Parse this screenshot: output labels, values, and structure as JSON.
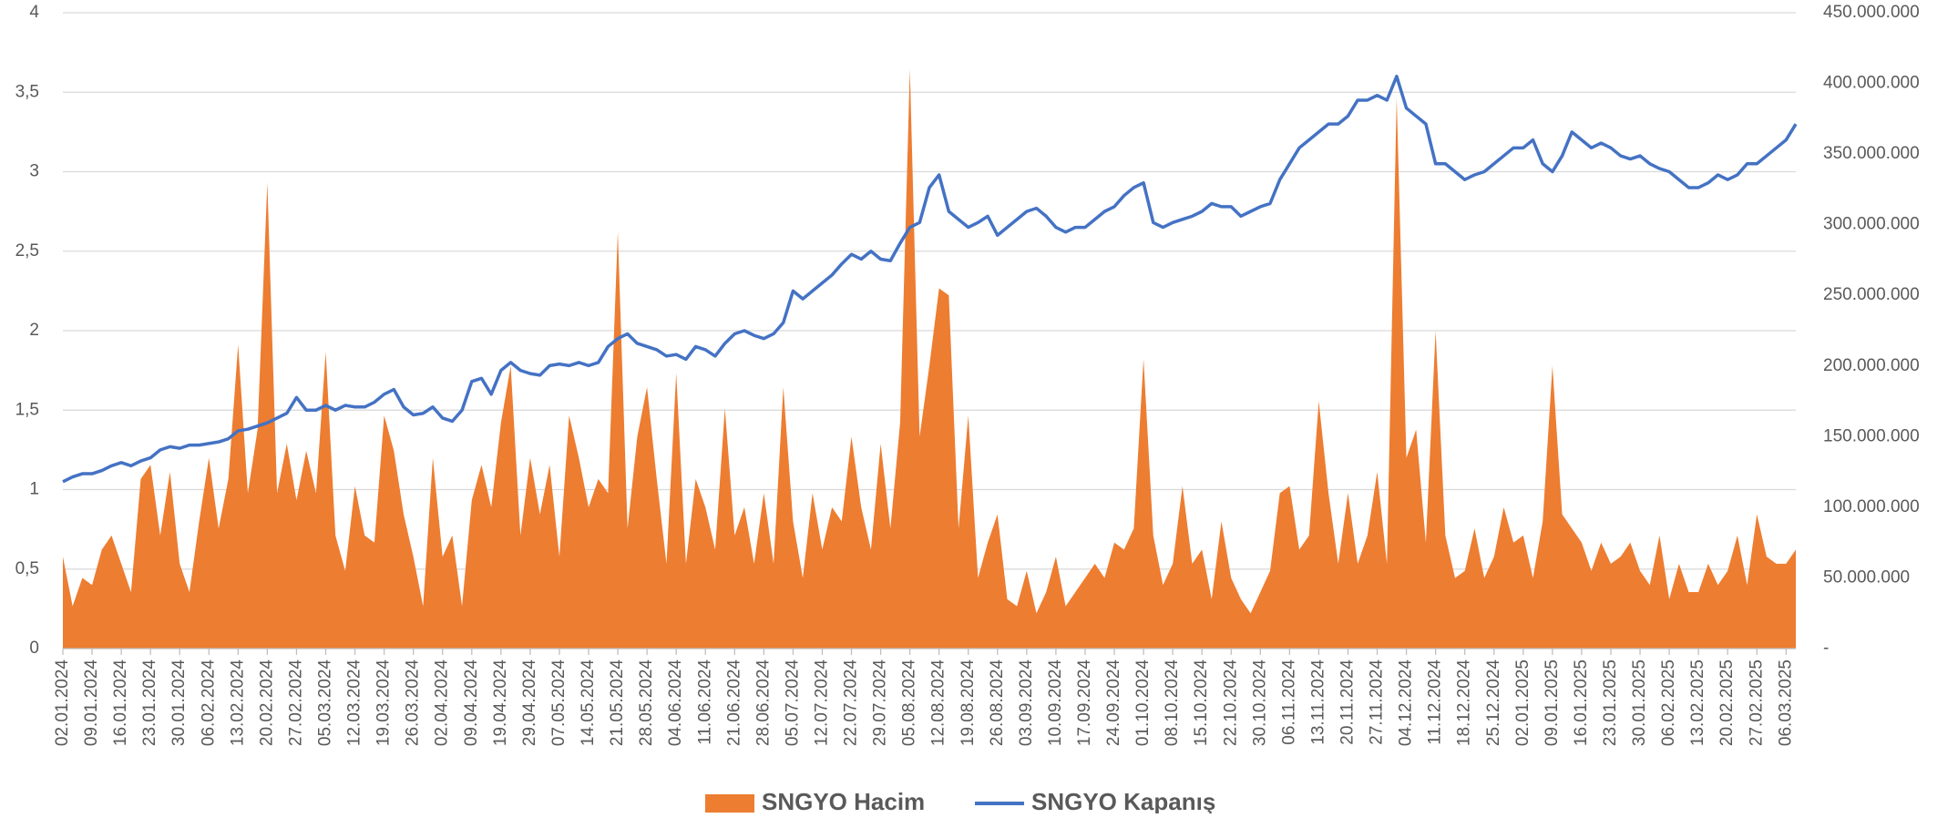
{
  "chart_data": {
    "type": "line",
    "legend": "bottom",
    "grid": true,
    "categories": [
      "02.01.2024",
      null,
      null,
      "09.01.2024",
      null,
      null,
      "16.01.2024",
      null,
      null,
      "23.01.2024",
      null,
      null,
      "30.01.2024",
      null,
      null,
      "06.02.2024",
      null,
      null,
      "13.02.2024",
      null,
      null,
      "20.02.2024",
      null,
      null,
      "27.02.2024",
      null,
      null,
      "05.03.2024",
      null,
      null,
      "12.03.2024",
      null,
      null,
      "19.03.2024",
      null,
      null,
      "26.03.2024",
      null,
      null,
      "02.04.2024",
      null,
      null,
      "09.04.2024",
      null,
      null,
      "19.04.2024",
      null,
      null,
      "29.04.2024",
      null,
      null,
      "07.05.2024",
      null,
      null,
      "14.05.2024",
      null,
      null,
      "21.05.2024",
      null,
      null,
      "28.05.2024",
      null,
      null,
      "04.06.2024",
      null,
      null,
      "11.06.2024",
      null,
      null,
      "21.06.2024",
      null,
      null,
      "28.06.2024",
      null,
      null,
      "05.07.2024",
      null,
      null,
      "12.07.2024",
      null,
      null,
      "22.07.2024",
      null,
      null,
      "29.07.2024",
      null,
      null,
      "05.08.2024",
      null,
      null,
      "12.08.2024",
      null,
      null,
      "19.08.2024",
      null,
      null,
      "26.08.2024",
      null,
      null,
      "03.09.2024",
      null,
      null,
      "10.09.2024",
      null,
      null,
      "17.09.2024",
      null,
      null,
      "24.09.2024",
      null,
      null,
      "01.10.2024",
      null,
      null,
      "08.10.2024",
      null,
      null,
      "15.10.2024",
      null,
      null,
      "22.10.2024",
      null,
      null,
      "30.10.2024",
      null,
      null,
      "06.11.2024",
      null,
      null,
      "13.11.2024",
      null,
      null,
      "20.11.2024",
      null,
      null,
      "27.11.2024",
      null,
      null,
      "04.12.2024",
      null,
      null,
      "11.12.2024",
      null,
      null,
      "18.12.2024",
      null,
      null,
      "25.12.2024",
      null,
      null,
      "02.01.2025",
      null,
      null,
      "09.01.2025",
      null,
      null,
      "16.01.2025",
      null,
      null,
      "23.01.2025",
      null,
      null,
      "30.01.2025",
      null,
      null,
      "06.02.2025",
      null,
      null,
      "13.02.2025",
      null,
      null,
      "20.02.2025",
      null,
      null,
      "27.02.2025",
      null,
      null,
      "06.03.2025",
      null
    ],
    "series": [
      {
        "name": "SNGYO Hacim",
        "type": "area",
        "axis": "y2",
        "color": "#ed7d31",
        "values": [
          65000000,
          30000000,
          50000000,
          45000000,
          70000000,
          80000000,
          60000000,
          40000000,
          120000000,
          130000000,
          80000000,
          125000000,
          60000000,
          40000000,
          90000000,
          135000000,
          85000000,
          120000000,
          215000000,
          110000000,
          155000000,
          330000000,
          110000000,
          145000000,
          105000000,
          140000000,
          110000000,
          210000000,
          80000000,
          55000000,
          115000000,
          80000000,
          75000000,
          165000000,
          140000000,
          95000000,
          65000000,
          30000000,
          135000000,
          65000000,
          80000000,
          30000000,
          105000000,
          130000000,
          100000000,
          160000000,
          200000000,
          80000000,
          135000000,
          95000000,
          130000000,
          65000000,
          165000000,
          135000000,
          100000000,
          120000000,
          110000000,
          295000000,
          85000000,
          150000000,
          185000000,
          120000000,
          60000000,
          195000000,
          60000000,
          120000000,
          100000000,
          70000000,
          170000000,
          80000000,
          100000000,
          60000000,
          110000000,
          60000000,
          185000000,
          90000000,
          50000000,
          110000000,
          70000000,
          100000000,
          90000000,
          150000000,
          100000000,
          70000000,
          145000000,
          85000000,
          160000000,
          410000000,
          150000000,
          200000000,
          255000000,
          250000000,
          85000000,
          165000000,
          50000000,
          75000000,
          95000000,
          35000000,
          30000000,
          55000000,
          25000000,
          40000000,
          65000000,
          30000000,
          40000000,
          50000000,
          60000000,
          50000000,
          75000000,
          70000000,
          85000000,
          205000000,
          80000000,
          45000000,
          60000000,
          115000000,
          60000000,
          70000000,
          35000000,
          90000000,
          50000000,
          35000000,
          25000000,
          40000000,
          55000000,
          110000000,
          115000000,
          70000000,
          80000000,
          175000000,
          110000000,
          60000000,
          110000000,
          60000000,
          80000000,
          125000000,
          60000000,
          390000000,
          135000000,
          155000000,
          75000000,
          225000000,
          80000000,
          50000000,
          55000000,
          85000000,
          50000000,
          65000000,
          100000000,
          75000000,
          80000000,
          50000000,
          90000000,
          200000000,
          95000000,
          85000000,
          75000000,
          55000000,
          75000000,
          60000000,
          65000000,
          75000000,
          55000000,
          45000000,
          80000000,
          35000000,
          60000000,
          40000000,
          40000000,
          60000000,
          45000000,
          55000000,
          80000000,
          45000000,
          95000000,
          65000000,
          60000000,
          60000000,
          70000000
        ]
      },
      {
        "name": "SNGYO Kapanış",
        "type": "line",
        "color": "#4472c4",
        "values": [
          1.05,
          1.08,
          1.1,
          1.1,
          1.12,
          1.15,
          1.17,
          1.15,
          1.18,
          1.2,
          1.25,
          1.27,
          1.26,
          1.28,
          1.28,
          1.29,
          1.3,
          1.32,
          1.37,
          1.38,
          1.4,
          1.42,
          1.45,
          1.48,
          1.58,
          1.5,
          1.5,
          1.53,
          1.5,
          1.53,
          1.52,
          1.52,
          1.55,
          1.6,
          1.63,
          1.52,
          1.47,
          1.48,
          1.52,
          1.45,
          1.43,
          1.5,
          1.68,
          1.7,
          1.6,
          1.75,
          1.8,
          1.75,
          1.73,
          1.72,
          1.78,
          1.79,
          1.78,
          1.8,
          1.78,
          1.8,
          1.9,
          1.95,
          1.98,
          1.92,
          1.9,
          1.88,
          1.84,
          1.85,
          1.82,
          1.9,
          1.88,
          1.84,
          1.92,
          1.98,
          2.0,
          1.97,
          1.95,
          1.98,
          2.05,
          2.25,
          2.2,
          2.25,
          2.3,
          2.35,
          2.42,
          2.48,
          2.45,
          2.5,
          2.45,
          2.44,
          2.55,
          2.65,
          2.68,
          2.9,
          2.98,
          2.75,
          2.7,
          2.65,
          2.68,
          2.72,
          2.6,
          2.65,
          2.7,
          2.75,
          2.77,
          2.72,
          2.65,
          2.62,
          2.65,
          2.65,
          2.7,
          2.75,
          2.78,
          2.85,
          2.9,
          2.93,
          2.68,
          2.65,
          2.68,
          2.7,
          2.72,
          2.75,
          2.8,
          2.78,
          2.78,
          2.72,
          2.75,
          2.78,
          2.8,
          2.95,
          3.05,
          3.15,
          3.2,
          3.25,
          3.3,
          3.3,
          3.35,
          3.45,
          3.45,
          3.48,
          3.45,
          3.6,
          3.4,
          3.35,
          3.3,
          3.05,
          3.05,
          3.0,
          2.95,
          2.98,
          3.0,
          3.05,
          3.1,
          3.15,
          3.15,
          3.2,
          3.05,
          3.0,
          3.1,
          3.25,
          3.2,
          3.15,
          3.18,
          3.15,
          3.1,
          3.08,
          3.1,
          3.05,
          3.02,
          3.0,
          2.95,
          2.9,
          2.9,
          2.93,
          2.98,
          2.95,
          2.98,
          3.05,
          3.05,
          3.1,
          3.15,
          3.2,
          3.3
        ]
      }
    ],
    "ylim": [
      0,
      4
    ],
    "yticks": [
      0,
      {
        "value": 0.5,
        "label": "0,5"
      },
      1,
      {
        "value": 1.5,
        "label": "1,5"
      },
      2,
      {
        "value": 2.5,
        "label": "2,5"
      },
      3,
      {
        "value": 3.5,
        "label": "3,5"
      },
      4
    ],
    "y2lim": [
      0,
      450000000
    ],
    "y2ticks": [
      {
        "value": 0,
        "label": "-"
      },
      {
        "value": 50000000,
        "label": "50.000.000"
      },
      {
        "value": 100000000,
        "label": "100.000.000"
      },
      {
        "value": 150000000,
        "label": "150.000.000"
      },
      {
        "value": 200000000,
        "label": "200.000.000"
      },
      {
        "value": 250000000,
        "label": "250.000.000"
      },
      {
        "value": 300000000,
        "label": "300.000.000"
      },
      {
        "value": 350000000,
        "label": "350.000.000"
      },
      {
        "value": 400000000,
        "label": "400.000.000"
      },
      {
        "value": 450000000,
        "label": "450.000.000"
      }
    ]
  }
}
